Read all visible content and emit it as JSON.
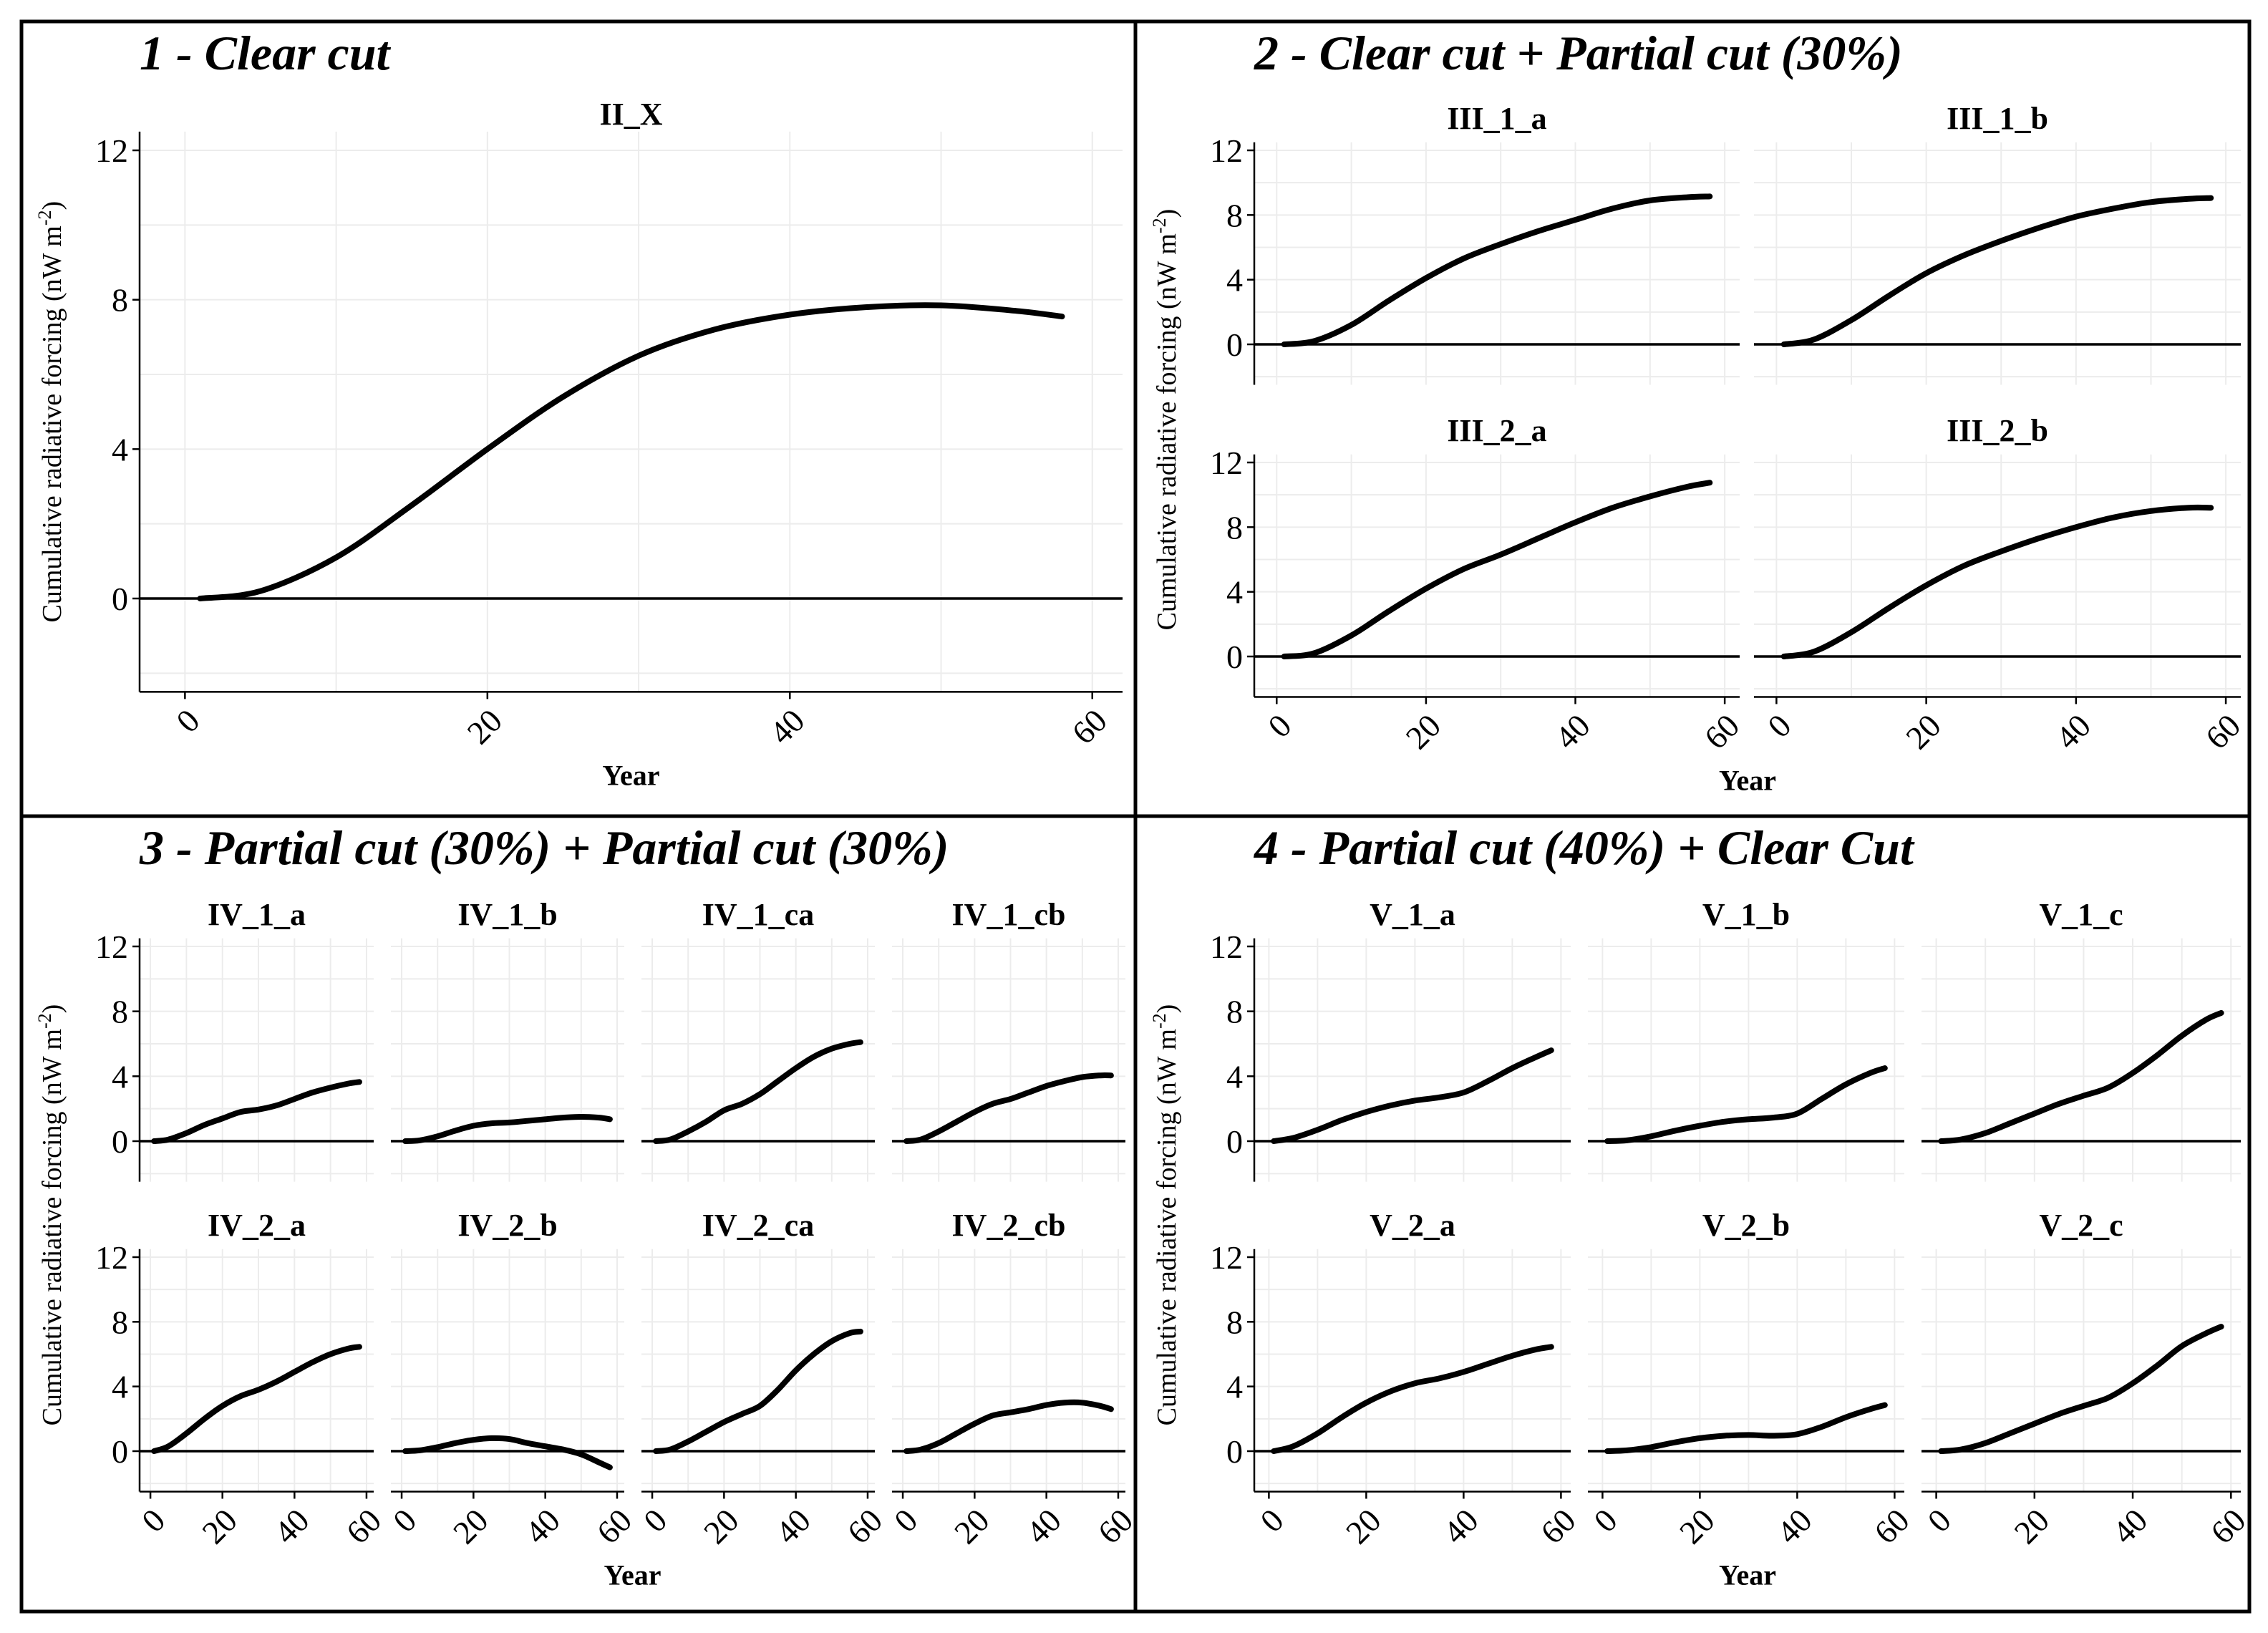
{
  "figure": {
    "x_axis_title": "Year",
    "y_axis_title": "Cumulative radiative forcing (nW m-2)",
    "y_axis_title_main": "Cumulative radiative forcing (nW m",
    "y_axis_title_exp": "-2",
    "y_axis_title_close": ")"
  },
  "quadrants": [
    {
      "id": "q1",
      "title": "1 - Clear cut"
    },
    {
      "id": "q2",
      "title": "2 - Clear cut + Partial cut (30%)"
    },
    {
      "id": "q3",
      "title": "3 - Partial cut (30%) + Partial cut (30%)"
    },
    {
      "id": "q4",
      "title": "4 - Partial cut (40%) + Clear Cut"
    }
  ],
  "chart_data": [
    {
      "type": "line",
      "quadrant": "q1",
      "title": "II_X",
      "xlabel": "Year",
      "ylabel": "Cumulative radiative forcing (nW m-2)",
      "xlim": [
        -3,
        62
      ],
      "ylim": [
        -2.5,
        12.5
      ],
      "xticks": [
        "0",
        "20",
        "40",
        "60"
      ],
      "yticks": [
        "0",
        "4",
        "8",
        "12"
      ],
      "x": [
        1,
        5,
        10,
        15,
        20,
        25,
        30,
        35,
        40,
        45,
        50,
        55,
        58
      ],
      "y": [
        0,
        0.2,
        1.1,
        2.5,
        4.0,
        5.4,
        6.5,
        7.2,
        7.6,
        7.8,
        7.85,
        7.7,
        7.55
      ]
    },
    {
      "type": "line",
      "quadrant": "q2",
      "title": "III_1_a",
      "xlim": [
        -3,
        62
      ],
      "ylim": [
        -2.5,
        12.5
      ],
      "xticks": [
        "0",
        "20",
        "40",
        "60"
      ],
      "yticks": [
        "0",
        "4",
        "8",
        "12"
      ],
      "x": [
        1,
        5,
        10,
        15,
        20,
        25,
        30,
        35,
        40,
        45,
        50,
        55,
        58
      ],
      "y": [
        0,
        0.2,
        1.2,
        2.7,
        4.1,
        5.3,
        6.2,
        7.0,
        7.7,
        8.4,
        8.9,
        9.1,
        9.15
      ]
    },
    {
      "type": "line",
      "quadrant": "q2",
      "title": "III_1_b",
      "xlim": [
        -3,
        62
      ],
      "ylim": [
        -2.5,
        12.5
      ],
      "xticks": [
        "0",
        "20",
        "40",
        "60"
      ],
      "yticks": [
        "0",
        "4",
        "8",
        "12"
      ],
      "x": [
        1,
        5,
        10,
        15,
        20,
        25,
        30,
        35,
        40,
        45,
        50,
        55,
        58
      ],
      "y": [
        0,
        0.3,
        1.5,
        3.0,
        4.4,
        5.5,
        6.4,
        7.2,
        7.9,
        8.4,
        8.8,
        9.0,
        9.05
      ]
    },
    {
      "type": "line",
      "quadrant": "q2",
      "title": "III_2_a",
      "xlim": [
        -3,
        62
      ],
      "ylim": [
        -2.5,
        12.5
      ],
      "xticks": [
        "0",
        "20",
        "40",
        "60"
      ],
      "yticks": [
        "0",
        "4",
        "8",
        "12"
      ],
      "x": [
        1,
        5,
        10,
        15,
        20,
        25,
        30,
        35,
        40,
        45,
        50,
        55,
        58
      ],
      "y": [
        0,
        0.2,
        1.3,
        2.8,
        4.2,
        5.4,
        6.3,
        7.3,
        8.3,
        9.2,
        9.9,
        10.5,
        10.75
      ]
    },
    {
      "type": "line",
      "quadrant": "q2",
      "title": "III_2_b",
      "xlim": [
        -3,
        62
      ],
      "ylim": [
        -2.5,
        12.5
      ],
      "xticks": [
        "0",
        "20",
        "40",
        "60"
      ],
      "yticks": [
        "0",
        "4",
        "8",
        "12"
      ],
      "x": [
        1,
        5,
        10,
        15,
        20,
        25,
        30,
        35,
        40,
        45,
        50,
        55,
        58
      ],
      "y": [
        0,
        0.3,
        1.5,
        3.0,
        4.4,
        5.6,
        6.5,
        7.3,
        8.0,
        8.6,
        9.0,
        9.2,
        9.2
      ]
    },
    {
      "type": "line",
      "quadrant": "q3",
      "title": "IV_1_a",
      "xlim": [
        -3,
        62
      ],
      "ylim": [
        -2.5,
        12.5
      ],
      "xticks": [
        "0",
        "20",
        "40",
        "60"
      ],
      "yticks": [
        "0",
        "4",
        "8",
        "12"
      ],
      "x": [
        1,
        5,
        10,
        15,
        20,
        25,
        30,
        35,
        40,
        45,
        50,
        55,
        58
      ],
      "y": [
        0,
        0.1,
        0.5,
        1.0,
        1.4,
        1.8,
        1.95,
        2.2,
        2.6,
        3.0,
        3.3,
        3.55,
        3.65
      ]
    },
    {
      "type": "line",
      "quadrant": "q3",
      "title": "IV_1_b",
      "xlim": [
        -3,
        62
      ],
      "ylim": [
        -2.5,
        12.5
      ],
      "xticks": [
        "0",
        "20",
        "40",
        "60"
      ],
      "yticks": [
        "0",
        "4",
        "8",
        "12"
      ],
      "x": [
        1,
        5,
        10,
        15,
        20,
        25,
        30,
        35,
        40,
        45,
        50,
        55,
        58
      ],
      "y": [
        0,
        0.05,
        0.3,
        0.65,
        0.95,
        1.1,
        1.15,
        1.25,
        1.35,
        1.45,
        1.5,
        1.45,
        1.35
      ]
    },
    {
      "type": "line",
      "quadrant": "q3",
      "title": "IV_1_ca",
      "xlim": [
        -3,
        62
      ],
      "ylim": [
        -2.5,
        12.5
      ],
      "xticks": [
        "0",
        "20",
        "40",
        "60"
      ],
      "yticks": [
        "0",
        "4",
        "8",
        "12"
      ],
      "x": [
        1,
        5,
        10,
        15,
        20,
        25,
        30,
        35,
        40,
        45,
        50,
        55,
        58
      ],
      "y": [
        0,
        0.1,
        0.6,
        1.2,
        1.9,
        2.3,
        2.9,
        3.7,
        4.5,
        5.2,
        5.7,
        6.0,
        6.1
      ]
    },
    {
      "type": "line",
      "quadrant": "q3",
      "title": "IV_1_cb",
      "xlim": [
        -3,
        62
      ],
      "ylim": [
        -2.5,
        12.5
      ],
      "xticks": [
        "0",
        "20",
        "40",
        "60"
      ],
      "yticks": [
        "0",
        "4",
        "8",
        "12"
      ],
      "x": [
        1,
        5,
        10,
        15,
        20,
        25,
        30,
        35,
        40,
        45,
        50,
        55,
        58
      ],
      "y": [
        0,
        0.1,
        0.6,
        1.2,
        1.8,
        2.3,
        2.6,
        3.0,
        3.4,
        3.7,
        3.95,
        4.05,
        4.05
      ]
    },
    {
      "type": "line",
      "quadrant": "q3",
      "title": "IV_2_a",
      "xlim": [
        -3,
        62
      ],
      "ylim": [
        -2.5,
        12.5
      ],
      "xticks": [
        "0",
        "20",
        "40",
        "60"
      ],
      "yticks": [
        "0",
        "4",
        "8",
        "12"
      ],
      "x": [
        1,
        5,
        10,
        15,
        20,
        25,
        30,
        35,
        40,
        45,
        50,
        55,
        58
      ],
      "y": [
        0,
        0.3,
        1.1,
        2.0,
        2.8,
        3.4,
        3.8,
        4.3,
        4.9,
        5.5,
        6.0,
        6.35,
        6.45
      ]
    },
    {
      "type": "line",
      "quadrant": "q3",
      "title": "IV_2_b",
      "xlim": [
        -3,
        62
      ],
      "ylim": [
        -2.5,
        12.5
      ],
      "xticks": [
        "0",
        "20",
        "40",
        "60"
      ],
      "yticks": [
        "0",
        "4",
        "8",
        "12"
      ],
      "x": [
        1,
        5,
        10,
        15,
        20,
        25,
        30,
        35,
        40,
        45,
        50,
        55,
        58
      ],
      "y": [
        0,
        0.05,
        0.25,
        0.5,
        0.7,
        0.8,
        0.75,
        0.5,
        0.3,
        0.1,
        -0.2,
        -0.7,
        -1.0
      ]
    },
    {
      "type": "line",
      "quadrant": "q3",
      "title": "IV_2_ca",
      "xlim": [
        -3,
        62
      ],
      "ylim": [
        -2.5,
        12.5
      ],
      "xticks": [
        "0",
        "20",
        "40",
        "60"
      ],
      "yticks": [
        "0",
        "4",
        "8",
        "12"
      ],
      "x": [
        1,
        5,
        10,
        15,
        20,
        25,
        30,
        35,
        40,
        45,
        50,
        55,
        58
      ],
      "y": [
        0,
        0.1,
        0.6,
        1.2,
        1.8,
        2.3,
        2.8,
        3.8,
        5.0,
        6.0,
        6.8,
        7.3,
        7.4
      ]
    },
    {
      "type": "line",
      "quadrant": "q3",
      "title": "IV_2_cb",
      "xlim": [
        -3,
        62
      ],
      "ylim": [
        -2.5,
        12.5
      ],
      "xticks": [
        "0",
        "20",
        "40",
        "60"
      ],
      "yticks": [
        "0",
        "4",
        "8",
        "12"
      ],
      "x": [
        1,
        5,
        10,
        15,
        20,
        25,
        30,
        35,
        40,
        45,
        50,
        55,
        58
      ],
      "y": [
        0,
        0.1,
        0.5,
        1.1,
        1.7,
        2.2,
        2.4,
        2.6,
        2.85,
        3.0,
        3.0,
        2.8,
        2.6
      ]
    },
    {
      "type": "line",
      "quadrant": "q4",
      "title": "V_1_a",
      "xlim": [
        -3,
        62
      ],
      "ylim": [
        -2.5,
        12.5
      ],
      "xticks": [
        "0",
        "20",
        "40",
        "60"
      ],
      "yticks": [
        "0",
        "4",
        "8",
        "12"
      ],
      "x": [
        1,
        5,
        10,
        15,
        20,
        25,
        30,
        35,
        40,
        45,
        50,
        55,
        58
      ],
      "y": [
        0,
        0.2,
        0.7,
        1.3,
        1.8,
        2.2,
        2.5,
        2.7,
        3.0,
        3.7,
        4.5,
        5.2,
        5.6
      ]
    },
    {
      "type": "line",
      "quadrant": "q4",
      "title": "V_1_b",
      "xlim": [
        -3,
        62
      ],
      "ylim": [
        -2.5,
        12.5
      ],
      "xticks": [
        "0",
        "20",
        "40",
        "60"
      ],
      "yticks": [
        "0",
        "4",
        "8",
        "12"
      ],
      "x": [
        1,
        5,
        10,
        15,
        20,
        25,
        30,
        35,
        40,
        45,
        50,
        55,
        58
      ],
      "y": [
        0,
        0.05,
        0.3,
        0.65,
        0.95,
        1.2,
        1.35,
        1.45,
        1.7,
        2.6,
        3.5,
        4.2,
        4.5
      ]
    },
    {
      "type": "line",
      "quadrant": "q4",
      "title": "V_1_c",
      "xlim": [
        -3,
        62
      ],
      "ylim": [
        -2.5,
        12.5
      ],
      "xticks": [
        "0",
        "20",
        "40",
        "60"
      ],
      "yticks": [
        "0",
        "4",
        "8",
        "12"
      ],
      "x": [
        1,
        5,
        10,
        15,
        20,
        25,
        30,
        35,
        40,
        45,
        50,
        55,
        58
      ],
      "y": [
        0,
        0.1,
        0.5,
        1.1,
        1.7,
        2.3,
        2.8,
        3.3,
        4.2,
        5.3,
        6.5,
        7.5,
        7.9
      ]
    },
    {
      "type": "line",
      "quadrant": "q4",
      "title": "V_2_a",
      "xlim": [
        -3,
        62
      ],
      "ylim": [
        -2.5,
        12.5
      ],
      "xticks": [
        "0",
        "20",
        "40",
        "60"
      ],
      "yticks": [
        "0",
        "4",
        "8",
        "12"
      ],
      "x": [
        1,
        5,
        10,
        15,
        20,
        25,
        30,
        35,
        40,
        45,
        50,
        55,
        58
      ],
      "y": [
        0,
        0.3,
        1.1,
        2.1,
        3.0,
        3.7,
        4.2,
        4.5,
        4.9,
        5.4,
        5.9,
        6.3,
        6.45
      ]
    },
    {
      "type": "line",
      "quadrant": "q4",
      "title": "V_2_b",
      "xlim": [
        -3,
        62
      ],
      "ylim": [
        -2.5,
        12.5
      ],
      "xticks": [
        "0",
        "20",
        "40",
        "60"
      ],
      "yticks": [
        "0",
        "4",
        "8",
        "12"
      ],
      "x": [
        1,
        5,
        10,
        15,
        20,
        25,
        30,
        35,
        40,
        45,
        50,
        55,
        58
      ],
      "y": [
        0,
        0.05,
        0.25,
        0.55,
        0.8,
        0.95,
        1.0,
        0.95,
        1.05,
        1.5,
        2.1,
        2.6,
        2.85
      ]
    },
    {
      "type": "line",
      "quadrant": "q4",
      "title": "V_2_c",
      "xlim": [
        -3,
        62
      ],
      "ylim": [
        -2.5,
        12.5
      ],
      "xticks": [
        "0",
        "20",
        "40",
        "60"
      ],
      "yticks": [
        "0",
        "4",
        "8",
        "12"
      ],
      "x": [
        1,
        5,
        10,
        15,
        20,
        25,
        30,
        35,
        40,
        45,
        50,
        55,
        58
      ],
      "y": [
        0,
        0.1,
        0.5,
        1.1,
        1.7,
        2.3,
        2.8,
        3.3,
        4.2,
        5.3,
        6.5,
        7.3,
        7.7
      ]
    }
  ]
}
